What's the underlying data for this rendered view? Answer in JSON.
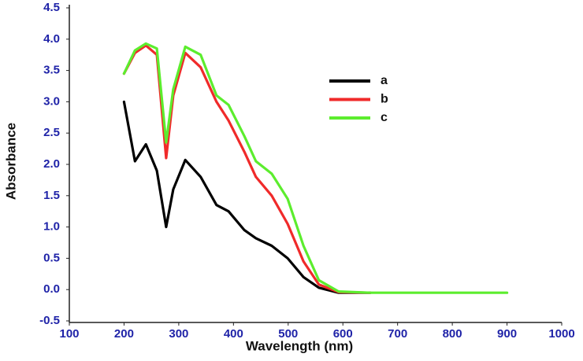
{
  "chart_data": {
    "type": "line",
    "x_label": "Wavelength (nm)",
    "y_label": "Absorbance",
    "x": [
      200,
      220,
      240,
      260,
      277,
      290,
      312,
      340,
      369,
      391,
      420,
      441,
      470,
      499,
      528,
      556,
      592,
      650,
      900
    ],
    "series": [
      {
        "name": "a",
        "color": "#000000",
        "values": [
          3.0,
          2.05,
          2.32,
          1.9,
          1.0,
          1.6,
          2.07,
          1.8,
          1.35,
          1.25,
          0.95,
          0.82,
          0.7,
          0.5,
          0.2,
          0.03,
          -0.05,
          -0.05,
          null
        ]
      },
      {
        "name": "b",
        "color": "#f02a2a",
        "values": [
          3.45,
          3.78,
          3.9,
          3.75,
          2.1,
          3.1,
          3.78,
          3.55,
          3.0,
          2.7,
          2.2,
          1.8,
          1.5,
          1.05,
          0.45,
          0.08,
          -0.04,
          -0.05,
          null
        ]
      },
      {
        "name": "c",
        "color": "#5ced2e",
        "values": [
          3.45,
          3.82,
          3.93,
          3.85,
          2.35,
          3.2,
          3.88,
          3.75,
          3.1,
          2.95,
          2.45,
          2.05,
          1.85,
          1.45,
          0.7,
          0.15,
          -0.03,
          -0.05,
          -0.05
        ]
      }
    ],
    "xlim": [
      100,
      1000
    ],
    "xticks": [
      100,
      200,
      300,
      400,
      500,
      600,
      700,
      800,
      900,
      1000
    ],
    "ylim": [
      -0.5,
      4.5
    ],
    "yticks": [
      -0.5,
      {
        "value": 0,
        "label": "0.0"
      },
      0.5,
      {
        "value": 1,
        "label": "1.0"
      },
      1.5,
      {
        "value": 2,
        "label": "2.0"
      },
      2.5,
      {
        "value": 3,
        "label": "3.0"
      },
      3.5,
      {
        "value": 4,
        "label": "4.0"
      },
      4.5
    ]
  }
}
